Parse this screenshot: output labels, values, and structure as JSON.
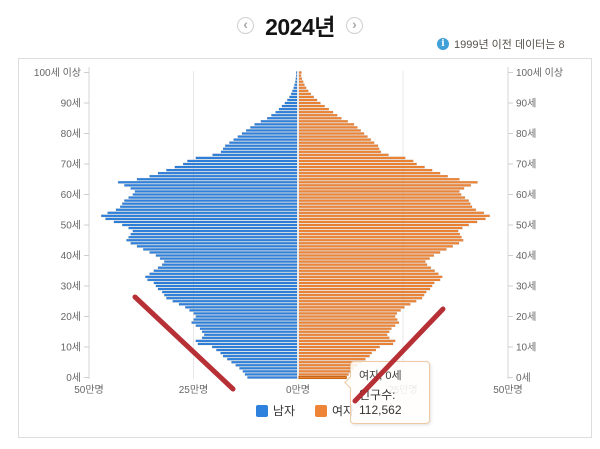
{
  "header": {
    "prev_label": "‹",
    "next_label": "›",
    "title": "2024년",
    "notice": {
      "icon": "i",
      "text": "1999년 이전 데이터는 8"
    }
  },
  "tooltip": {
    "title": "여자, 0세",
    "value_label": "인구수: 112,562"
  },
  "chart_data": {
    "type": "bar",
    "variant": "population-pyramid",
    "title": "2024년",
    "unit": "만명",
    "x_axis": {
      "tick_labels": [
        "50만명",
        "25만명",
        "0만명",
        "25만명",
        "50만명"
      ],
      "max_per_side": 50,
      "grid": true
    },
    "y_axis": {
      "tick_labels": [
        "0세",
        "10세",
        "20세",
        "30세",
        "40세",
        "50세",
        "60세",
        "70세",
        "80세",
        "90세",
        "100세 이상"
      ],
      "tick_interval": 10,
      "age_min": 0,
      "age_max": 100
    },
    "legend_position": "bottom",
    "series": [
      {
        "name": "남자",
        "color": "#2e81dc",
        "values": [
          11.8,
          12.4,
          12.9,
          13.7,
          14.6,
          15.6,
          16.6,
          17.6,
          18.2,
          19.2,
          20.2,
          23.6,
          24.1,
          22.6,
          22.1,
          22.6,
          23.1,
          24.1,
          25.1,
          24.6,
          24.1,
          24.6,
          25.6,
          26.6,
          28.1,
          29.6,
          31.1,
          31.6,
          32.1,
          33.1,
          33.6,
          34.1,
          35.6,
          36.1,
          35.1,
          34.1,
          33.1,
          32.1,
          31.6,
          32.6,
          33.6,
          35.1,
          36.6,
          38.1,
          39.6,
          40.6,
          40.1,
          39.6,
          39.1,
          40.1,
          41.6,
          43.6,
          45.6,
          46.6,
          45.1,
          43.1,
          42.1,
          41.6,
          41.1,
          40.1,
          39.1,
          38.6,
          39.6,
          41.1,
          42.6,
          38.1,
          35.1,
          33.1,
          31.1,
          29.1,
          27.1,
          26.1,
          24.1,
          20.1,
          18.1,
          17.6,
          17.1,
          16.1,
          15.1,
          14.1,
          13.1,
          12.1,
          11.1,
          10.1,
          8.6,
          7.1,
          6.1,
          5.1,
          4.3,
          3.6,
          2.9,
          2.3,
          1.8,
          1.4,
          1.1,
          0.8,
          0.6,
          0.4,
          0.3,
          0.2,
          0.2
        ]
      },
      {
        "name": "여자",
        "color": "#ee8435",
        "values": [
          11.26,
          11.8,
          12.3,
          13.0,
          13.9,
          14.9,
          15.8,
          16.8,
          17.3,
          18.3,
          19.2,
          22.4,
          22.9,
          21.5,
          21.0,
          21.5,
          22.0,
          22.9,
          23.8,
          23.4,
          22.9,
          23.3,
          24.2,
          25.1,
          26.5,
          27.9,
          29.3,
          29.8,
          30.3,
          31.2,
          31.7,
          32.2,
          33.6,
          34.1,
          33.2,
          32.3,
          31.4,
          30.5,
          30.1,
          31.1,
          32.1,
          33.6,
          35.1,
          36.6,
          38.1,
          39.1,
          38.7,
          38.3,
          37.9,
          38.9,
          40.4,
          42.4,
          44.4,
          45.4,
          44.0,
          42.1,
          41.2,
          40.8,
          40.4,
          39.5,
          38.6,
          38.2,
          39.3,
          40.9,
          42.5,
          38.2,
          35.4,
          33.6,
          31.7,
          29.9,
          28.0,
          27.2,
          25.3,
          21.3,
          19.5,
          19.1,
          18.8,
          17.9,
          17.1,
          16.3,
          15.5,
          14.7,
          13.9,
          13.1,
          11.6,
          10.1,
          9.1,
          8.1,
          7.1,
          6.1,
          5.1,
          4.3,
          3.5,
          2.8,
          2.2,
          1.7,
          1.3,
          1.0,
          0.7,
          0.5,
          0.6
        ]
      }
    ],
    "hovered_point": {
      "series": "여자",
      "age": 0,
      "population": 112562
    },
    "annotations": {
      "color": "#b3252c",
      "width": 5,
      "lines": [
        {
          "x1": 135,
          "y1": 297,
          "x2": 233,
          "y2": 389
        },
        {
          "x1": 443,
          "y1": 309,
          "x2": 355,
          "y2": 401
        }
      ]
    }
  }
}
